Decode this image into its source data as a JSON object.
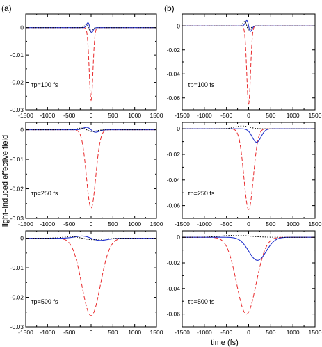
{
  "figure": {
    "ylabel": "light−induced effective field",
    "xlabel": "time (fs)",
    "column_labels": [
      "(a)",
      "(b)"
    ]
  },
  "chart_data": [
    {
      "type": "line",
      "panel": "a-top",
      "annotation": "τp=100 fs",
      "xlim": [
        -1500,
        1500
      ],
      "ylim": [
        -0.03,
        0.005
      ],
      "xticks": [
        -1500,
        -1000,
        -500,
        0,
        500,
        1000,
        1500
      ],
      "yticks": [
        0,
        -0.01,
        -0.02,
        -0.03
      ],
      "yticklabels": [
        "0",
        "-0.01",
        "-0.02",
        "-0.03"
      ],
      "series": [
        {
          "style": "dashed",
          "color": "#e8292b",
          "center": 0,
          "width": 60,
          "amplitude": -0.0265,
          "offset": 0,
          "offset_width": 1
        },
        {
          "style": "solid",
          "color": "#2233cc",
          "kind": "derivative",
          "center": -30,
          "width": 60,
          "amplitude": 0.0022
        },
        {
          "style": "dotted",
          "color": "#000000",
          "kind": "derivative",
          "center": -60,
          "width": 70,
          "amplitude": 0.0016
        }
      ]
    },
    {
      "type": "line",
      "panel": "a-mid",
      "annotation": "τp=250 fs",
      "xlim": [
        -1500,
        1500
      ],
      "ylim": [
        -0.03,
        0.0025
      ],
      "xticks": [
        -1500,
        -1000,
        -500,
        0,
        500,
        1000,
        1500
      ],
      "yticks": [
        0,
        -0.01,
        -0.02,
        -0.03
      ],
      "yticklabels": [
        "0",
        "-0.01",
        "-0.02",
        "-0.03"
      ],
      "series": [
        {
          "style": "dashed",
          "color": "#e8292b",
          "center": 0,
          "width": 150,
          "amplitude": -0.0265
        },
        {
          "style": "solid",
          "color": "#2233cc",
          "kind": "derivative",
          "center": 0,
          "width": 150,
          "amplitude": 0.001
        },
        {
          "style": "dotted",
          "color": "#000000",
          "kind": "derivative",
          "center": -100,
          "width": 180,
          "amplitude": 0.0007
        }
      ]
    },
    {
      "type": "line",
      "panel": "a-bot",
      "annotation": "τp=500 fs",
      "xlim": [
        -1500,
        1500
      ],
      "ylim": [
        -0.03,
        0.0025
      ],
      "xticks": [
        -1500,
        -1000,
        -500,
        0,
        500,
        1000,
        1500
      ],
      "yticks": [
        0,
        -0.01,
        -0.02,
        -0.03
      ],
      "yticklabels": [
        "0",
        "-0.01",
        "-0.02",
        "-0.03"
      ],
      "series": [
        {
          "style": "dashed",
          "color": "#e8292b",
          "center": 0,
          "width": 300,
          "amplitude": -0.0262
        },
        {
          "style": "solid",
          "color": "#2233cc",
          "kind": "derivative",
          "center": 0,
          "width": 300,
          "amplitude": 0.0009
        },
        {
          "style": "dotted",
          "color": "#000000",
          "kind": "derivative",
          "center": -200,
          "width": 380,
          "amplitude": 0.0006
        }
      ]
    },
    {
      "type": "line",
      "panel": "b-top",
      "annotation": "τp=100 fs",
      "xlim": [
        -1500,
        1500
      ],
      "ylim": [
        -0.07,
        0.01
      ],
      "xticks": [
        -1500,
        -1000,
        -500,
        0,
        500,
        1000,
        1500
      ],
      "yticks": [
        0,
        -0.02,
        -0.04,
        -0.06
      ],
      "yticklabels": [
        "0",
        "-0.02",
        "-0.04",
        "-0.06"
      ],
      "series": [
        {
          "style": "dashed",
          "color": "#e8292b",
          "center": 0,
          "width": 60,
          "amplitude": -0.065
        },
        {
          "style": "solid",
          "color": "#2233cc",
          "kind": "derivative",
          "center": 0,
          "width": 60,
          "amplitude": 0.0055
        },
        {
          "style": "dotted",
          "color": "#000000",
          "kind": "derivative",
          "center": -40,
          "width": 70,
          "amplitude": 0.0045
        }
      ]
    },
    {
      "type": "line",
      "panel": "b-mid",
      "annotation": "τp=250 fs",
      "xlim": [
        -1500,
        1500
      ],
      "ylim": [
        -0.07,
        0.005
      ],
      "xticks": [
        -1500,
        -1000,
        -500,
        0,
        500,
        1000,
        1500
      ],
      "yticks": [
        0,
        -0.02,
        -0.04,
        -0.06
      ],
      "yticklabels": [
        "0",
        "-0.02",
        "-0.04",
        "-0.06"
      ],
      "series": [
        {
          "style": "dashed",
          "color": "#e8292b",
          "center": 0,
          "width": 150,
          "amplitude": -0.063
        },
        {
          "style": "solid",
          "color": "#2233cc",
          "center": 180,
          "width": 140,
          "amplitude": -0.0105
        },
        {
          "style": "dotted",
          "color": "#000000",
          "center": -150,
          "width": 230,
          "amplitude": 0.0022
        }
      ]
    },
    {
      "type": "line",
      "panel": "b-bot",
      "annotation": "τp=500 fs",
      "xlim": [
        -1500,
        1500
      ],
      "ylim": [
        -0.07,
        0.005
      ],
      "xticks": [
        -1500,
        -1000,
        -500,
        0,
        500,
        1000,
        1500
      ],
      "yticks": [
        0,
        -0.02,
        -0.04,
        -0.06
      ],
      "yticklabels": [
        "0",
        "-0.02",
        "-0.04",
        "-0.06"
      ],
      "series": [
        {
          "style": "dashed",
          "color": "#e8292b",
          "center": -50,
          "width": 310,
          "amplitude": -0.06
        },
        {
          "style": "solid",
          "color": "#2233cc",
          "center": 200,
          "width": 280,
          "amplitude": -0.018
        },
        {
          "style": "dotted",
          "color": "#000000",
          "center": -300,
          "width": 450,
          "amplitude": 0.0015
        }
      ]
    }
  ]
}
